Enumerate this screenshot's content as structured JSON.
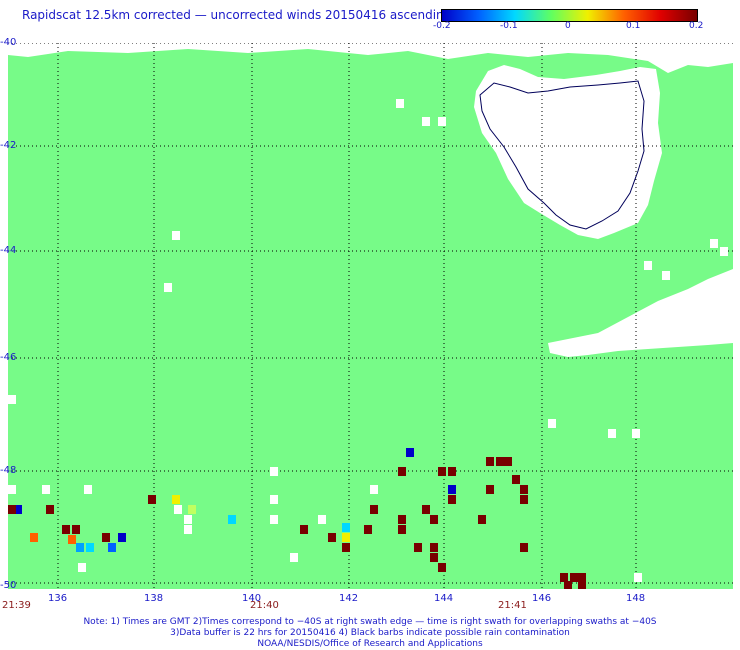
{
  "title": "Rapidscat 12.5km corrected — uncorrected winds 20150416 ascending",
  "colorbar": {
    "ticks": [
      "-0.2",
      "-0.1",
      "0",
      "0.1",
      "0.2"
    ],
    "colors": [
      "#0000c8",
      "#0060ff",
      "#00d8ff",
      "#60ff60",
      "#f0f000",
      "#ff6000",
      "#e00000",
      "#780000"
    ]
  },
  "axes": {
    "y_labels": [
      "-40",
      "-42",
      "-44",
      "-46",
      "-48",
      "-50"
    ],
    "x_labels": [
      "136",
      "138",
      "140",
      "142",
      "144",
      "146",
      "148"
    ]
  },
  "times": [
    "21:39",
    "21:40",
    "21:41"
  ],
  "notes": [
    "Note: 1) Times are GMT 2)Times correspond to −40S at right swath edge — time is right swath for overlapping swaths at −40S",
    "3)Data buffer is 22 hrs for 20150416 4) Black barbs indicate possible rain contamination",
    "NOAA/NESDIS/Office of Research and Applications"
  ],
  "colors": {
    "background_field": "#77fb88",
    "land": "#ffffff",
    "coast": "#00005a",
    "grid": "#000000",
    "label_blue": "#1a1ac8",
    "time_red": "#8a1a1a"
  }
}
